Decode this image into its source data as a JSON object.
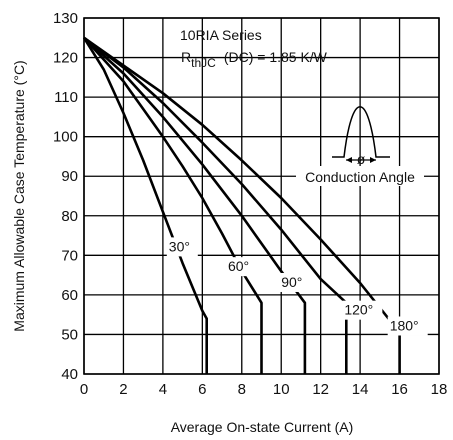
{
  "chart_data": {
    "type": "line",
    "xlabel": "Average On-state Current (A)",
    "ylabel": "Maximum Allowable Case Temperature (°C)",
    "xlim": [
      0,
      18
    ],
    "ylim": [
      40,
      130
    ],
    "xticks": [
      0,
      2,
      4,
      6,
      8,
      10,
      12,
      14,
      16,
      18
    ],
    "yticks": [
      40,
      50,
      60,
      70,
      80,
      90,
      100,
      110,
      120,
      130
    ],
    "grid": true,
    "annotations": {
      "series_title": "10RIA Series",
      "rth_symbol": "R",
      "rth_subscript": "thJC",
      "rth_condition": "(DC) = 1.85 K/W",
      "inset_label": "Conduction Angle",
      "inset_symbol": "ø"
    },
    "series": [
      {
        "name": "30°",
        "x": [
          0,
          1,
          2,
          3,
          4,
          5,
          6,
          6.22,
          6.22
        ],
        "y": [
          125,
          117,
          106,
          94,
          81,
          68,
          56,
          54,
          40
        ]
      },
      {
        "name": "60°",
        "x": [
          0,
          1,
          2,
          3,
          4,
          5,
          6,
          7,
          8,
          9,
          9,
          9
        ],
        "y": [
          125,
          119.5,
          114,
          107,
          100,
          92.5,
          84.5,
          75.5,
          66,
          58,
          58,
          40
        ]
      },
      {
        "name": "90°",
        "x": [
          0,
          2,
          4,
          6,
          8,
          10,
          11.2,
          11.2
        ],
        "y": [
          125,
          116,
          105,
          93,
          80,
          66,
          58,
          40
        ]
      },
      {
        "name": "120°",
        "x": [
          0,
          2,
          4,
          6,
          8,
          10,
          12,
          13.3,
          13.3
        ],
        "y": [
          125,
          117.5,
          108.5,
          98.5,
          88,
          76.5,
          64,
          58,
          40
        ]
      },
      {
        "name": "180°",
        "x": [
          0,
          2,
          4,
          6,
          8,
          10,
          12,
          14,
          16,
          16
        ],
        "y": [
          125,
          118,
          111,
          103,
          94,
          84.5,
          74,
          63,
          50.5,
          40
        ]
      }
    ],
    "series_label_anchor": [
      {
        "x": 4.3,
        "y": 71
      },
      {
        "x": 7.3,
        "y": 66
      },
      {
        "x": 10,
        "y": 62
      },
      {
        "x": 13.2,
        "y": 55
      },
      {
        "x": 15.5,
        "y": 51
      }
    ]
  }
}
